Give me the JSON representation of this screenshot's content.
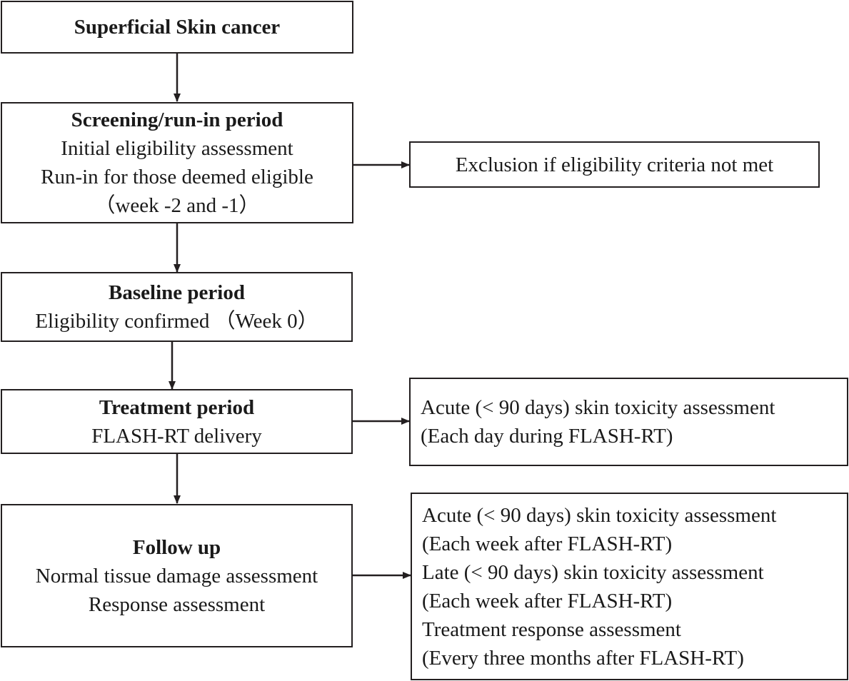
{
  "start": {
    "title": "Superficial Skin cancer"
  },
  "screening": {
    "title": "Screening/run-in period",
    "lines": [
      "Initial eligibility assessment",
      "Run-in for those deemed eligible",
      "（week -2 and -1）"
    ]
  },
  "exclusion": {
    "text": "Exclusion if eligibility criteria not met"
  },
  "baseline": {
    "title": "Baseline period",
    "lines": [
      "Eligibility confirmed （Week 0）"
    ]
  },
  "treatment": {
    "title": "Treatment period",
    "lines": [
      "FLASH-RT delivery"
    ]
  },
  "acute_daily": {
    "lines": [
      "Acute (< 90 days) skin toxicity  assessment",
      "(Each day during FLASH-RT)"
    ]
  },
  "followup": {
    "title": "Follow up",
    "lines": [
      "Normal tissue damage assessment",
      "Response assessment"
    ]
  },
  "followup_assessments": {
    "lines": [
      "Acute (< 90 days) skin toxicity  assessment",
      "(Each week after FLASH-RT)",
      "Late (< 90 days) skin toxicity  assessment",
      "(Each week after FLASH-RT)",
      "Treatment response assessment",
      "(Every three months after FLASH-RT)"
    ]
  }
}
